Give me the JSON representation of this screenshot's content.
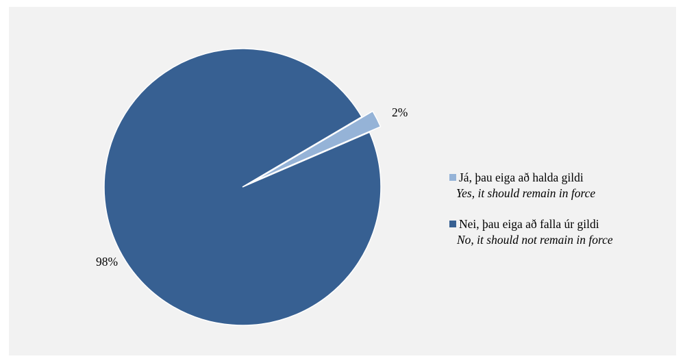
{
  "chart_data": {
    "type": "pie",
    "slices": [
      {
        "label": "Já, þau eiga að halda gildi",
        "sublabel": "Yes, it should remain in force",
        "value": 2,
        "data_label": "2%",
        "color": "#95b3d7",
        "exploded": true
      },
      {
        "label": "Nei, þau eiga að falla úr gildi",
        "sublabel": "No, it should not remain in force",
        "value": 98,
        "data_label": "98%",
        "color": "#376092",
        "exploded": false
      }
    ],
    "legend_position": "right",
    "background": "#f2f2f2"
  }
}
